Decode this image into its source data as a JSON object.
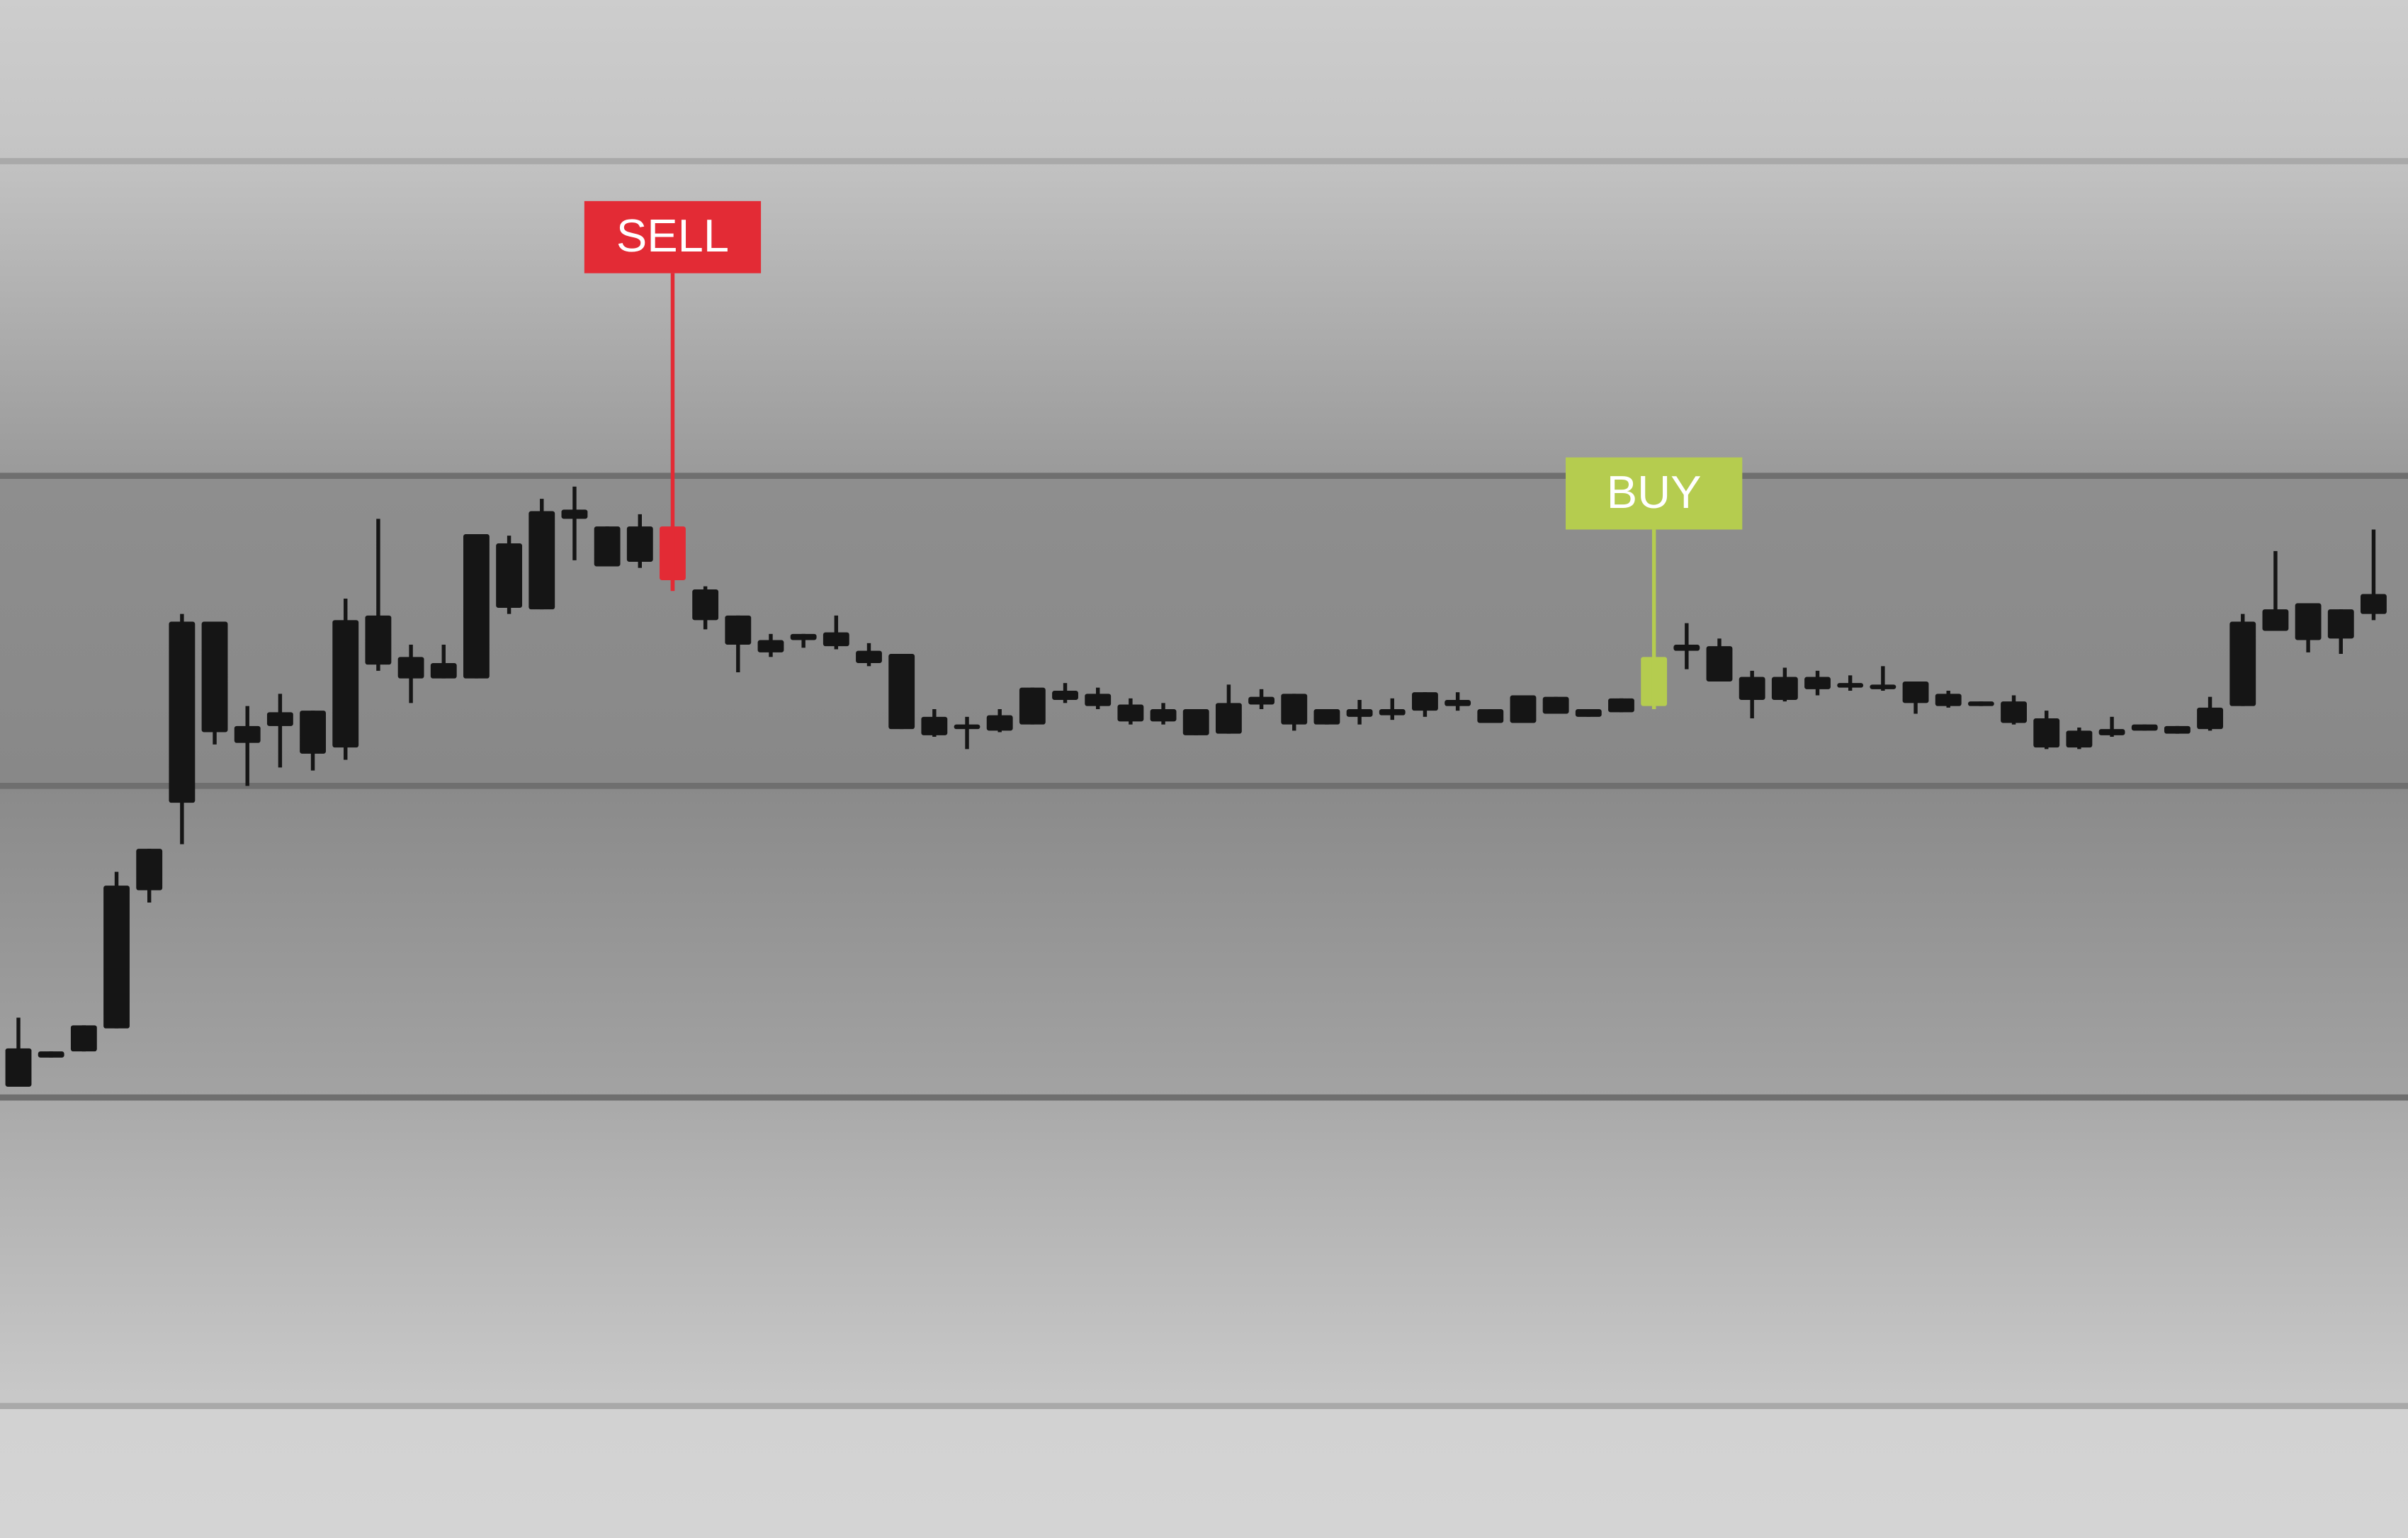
{
  "chart_data": {
    "type": "candlestick",
    "ylim": [
      0,
      1002
    ],
    "gridlines": [
      86,
      287,
      490,
      692,
      897
    ],
    "color": "#151515",
    "series": [
      {
        "open": [
          294,
          313,
          317,
          332,
          422,
          479,
          525,
          518,
          529,
          511,
          515,
          569,
          560,
          560,
          560,
          606,
          605,
          664,
          633,
          636,
          624,
          598,
          582,
          577,
          585,
          581,
          570,
          527,
          523,
          527,
          526,
          530,
          546,
          542,
          532,
          532,
          523,
          524,
          543,
          530,
          530,
          535,
          536,
          539,
          542,
          531,
          531,
          537,
          535,
          538,
          542,
          578,
          558,
          546,
          546,
          553,
          554,
          554,
          544,
          542,
          542,
          531,
          515,
          515,
          523,
          526,
          524,
          527,
          542,
          591,
          585,
          586,
          602
        ],
        "high": [
          339,
          317,
          334,
          434,
          449,
          602,
          597,
          542,
          550,
          539,
          612,
          664,
          582,
          582,
          654,
          653,
          677,
          685,
          659,
          667,
          659,
          620,
          601,
          589,
          589,
          601,
          583,
          576,
          540,
          535,
          540,
          554,
          557,
          554,
          547,
          544,
          540,
          556,
          553,
          550,
          540,
          546,
          547,
          551,
          551,
          540,
          549,
          548,
          540,
          547,
          574,
          596,
          586,
          565,
          567,
          565,
          562,
          568,
          558,
          552,
          545,
          549,
          539,
          528,
          535,
          530,
          529,
          548,
          602,
          643,
          609,
          605,
          657
        ],
        "low": [
          294,
          313,
          317,
          332,
          414,
          452,
          517,
          490,
          502,
          500,
          507,
          565,
          544,
          560,
          560,
          602,
          605,
          637,
          633,
          632,
          617,
          592,
          564,
          574,
          580,
          579,
          568,
          527,
          522,
          514,
          525,
          530,
          544,
          540,
          530,
          530,
          523,
          524,
          540,
          526,
          530,
          530,
          533,
          535,
          539,
          531,
          531,
          537,
          535,
          538,
          540,
          566,
          558,
          534,
          545,
          549,
          552,
          552,
          537,
          541,
          542,
          530,
          514,
          514,
          522,
          526,
          524,
          526,
          542,
          591,
          577,
          576,
          598
        ],
        "close": [
          319,
          317,
          334,
          425,
          449,
          597,
          597,
          529,
          538,
          539,
          598,
          601,
          574,
          570,
          654,
          648,
          669,
          670,
          659,
          659,
          659,
          618,
          601,
          585,
          589,
          590,
          578,
          576,
          535,
          530,
          536,
          554,
          552,
          550,
          543,
          540,
          540,
          544,
          548,
          550,
          540,
          540,
          540,
          551,
          546,
          540,
          549,
          548,
          540,
          547,
          574,
          582,
          581,
          561,
          561,
          561,
          557,
          556,
          558,
          550,
          545,
          545,
          534,
          526,
          527,
          530,
          529,
          541,
          597,
          605,
          609,
          605,
          615
        ]
      }
    ],
    "signals": [
      {
        "label": "SELL",
        "index": 20,
        "color": "#e32b35"
      },
      {
        "label": "BUY",
        "index": 50,
        "color": "#b5cc4f"
      }
    ]
  }
}
